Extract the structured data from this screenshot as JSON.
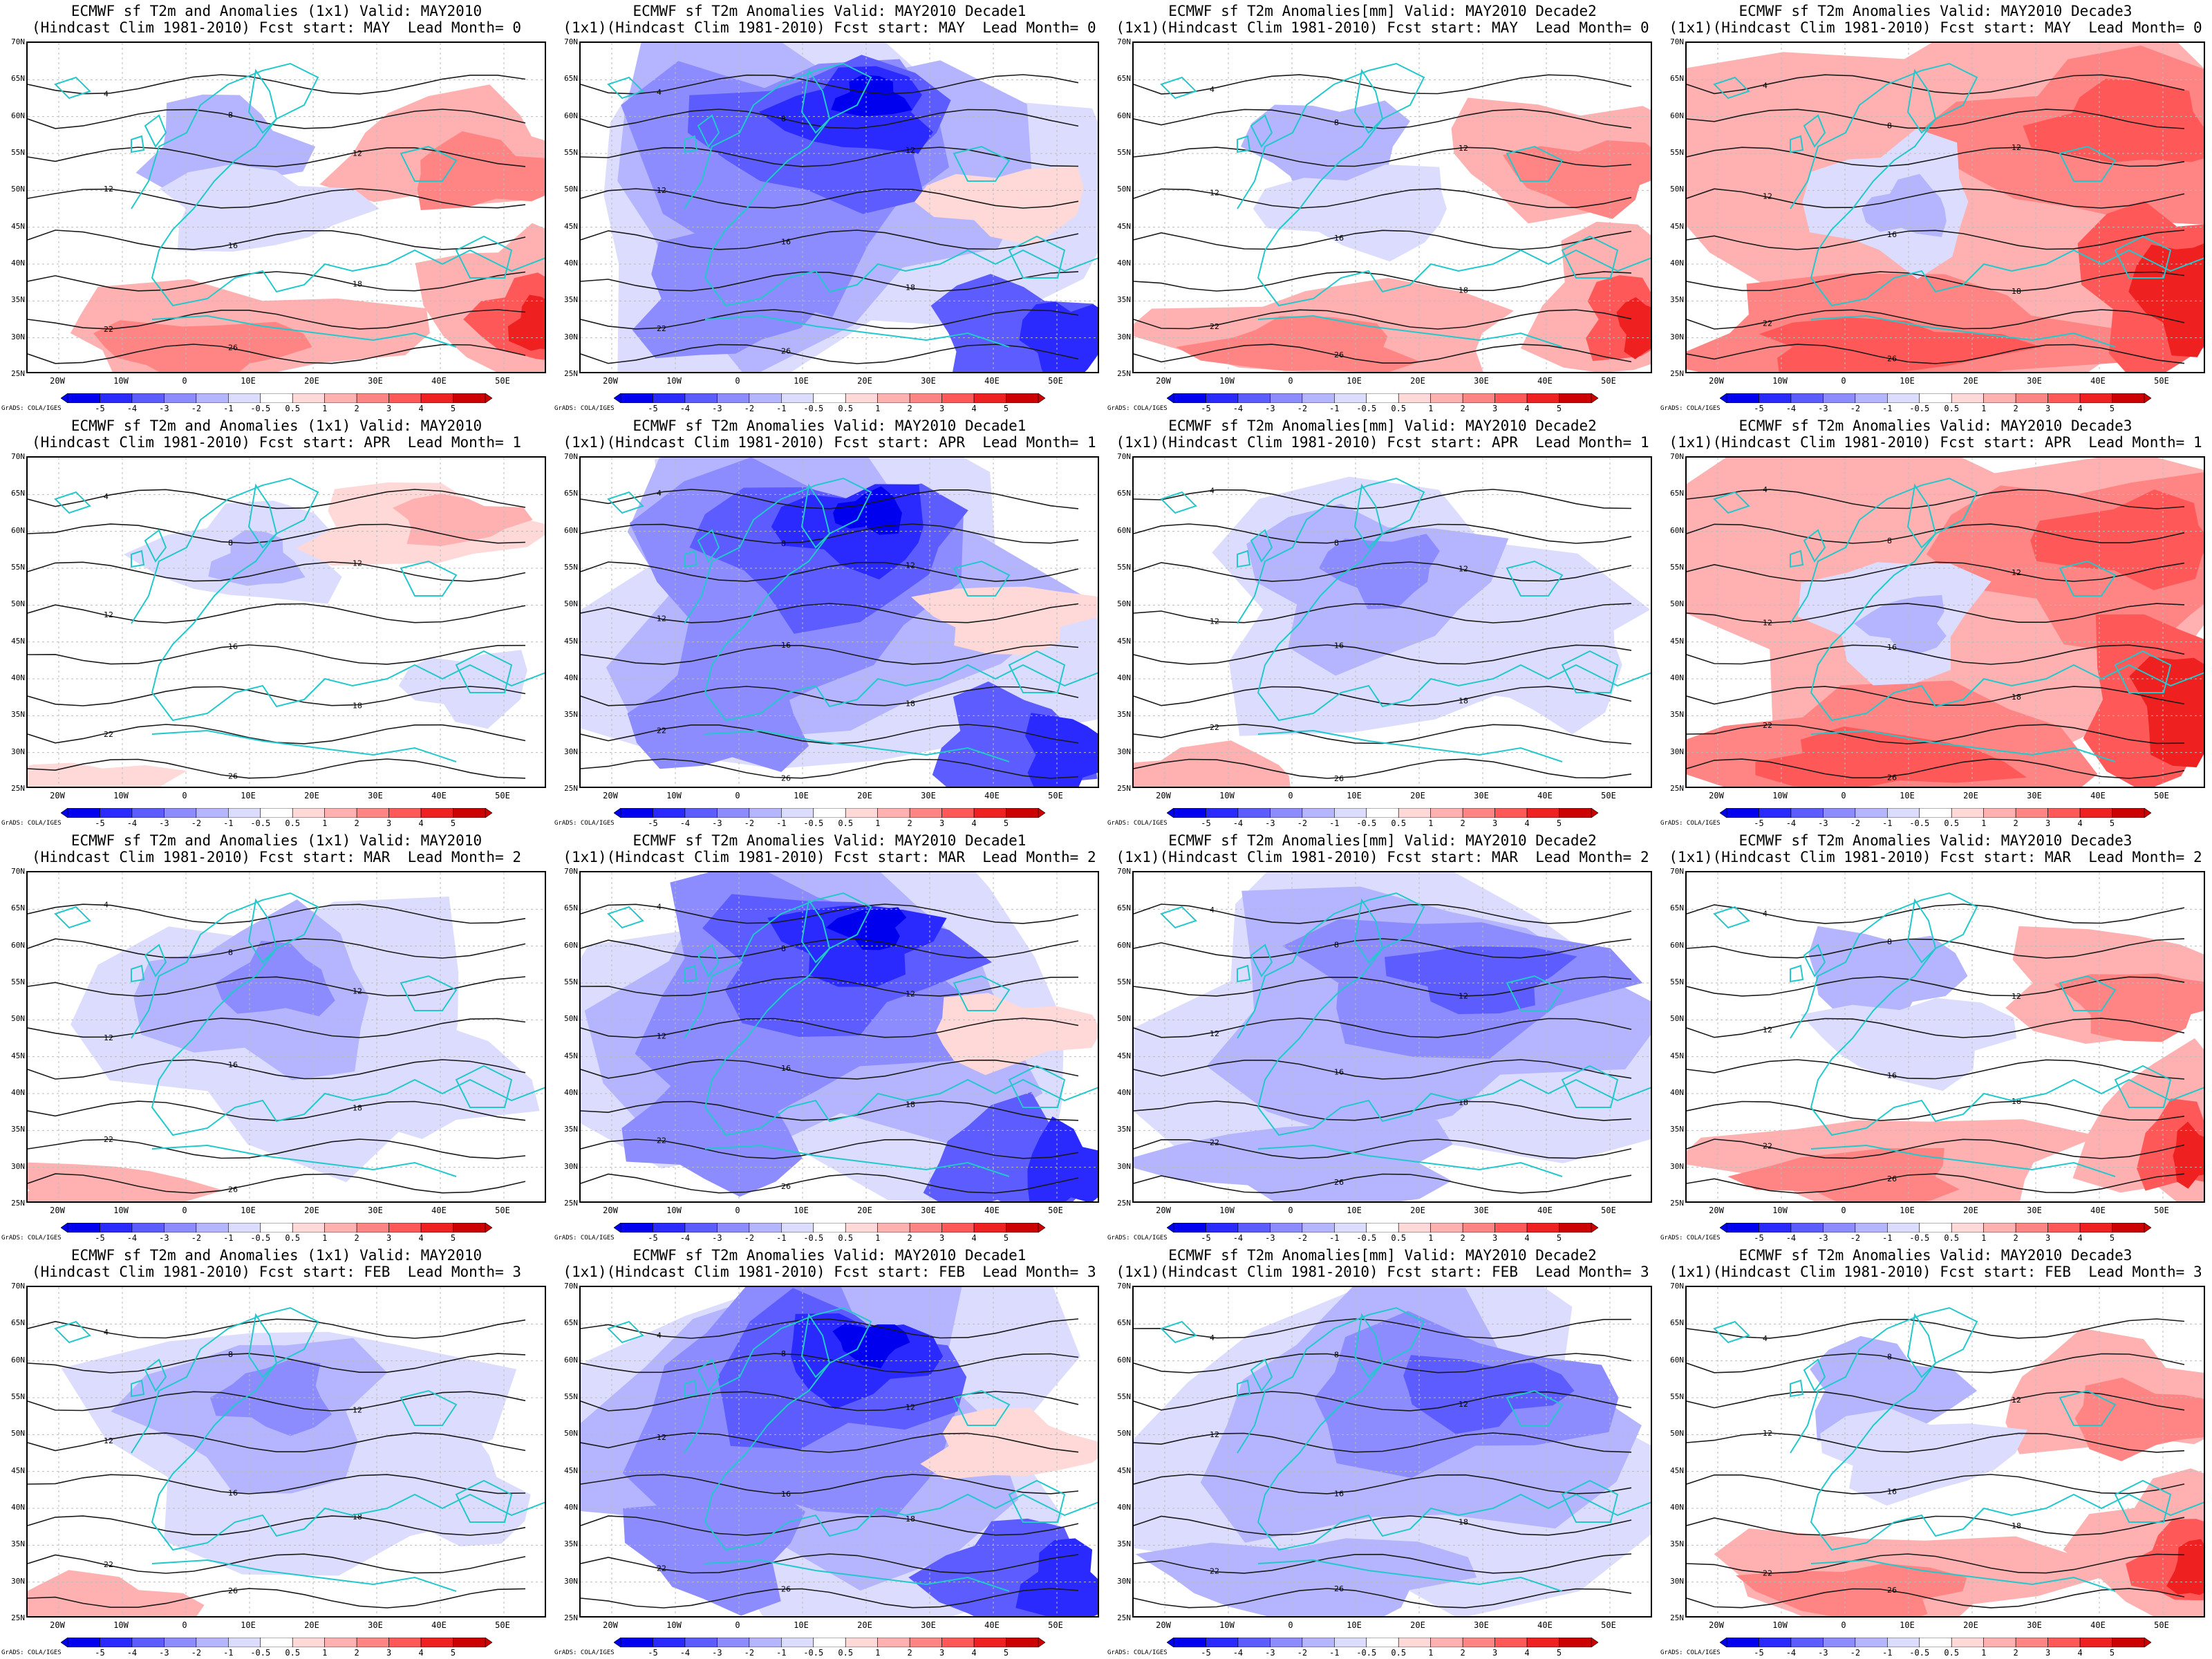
{
  "lat_labels": [
    "70N",
    "65N",
    "60N",
    "55N",
    "50N",
    "45N",
    "40N",
    "35N",
    "30N",
    "25N"
  ],
  "lon_labels": [
    "20W",
    "10W",
    "0",
    "10E",
    "20E",
    "30E",
    "40E",
    "50E"
  ],
  "colorbar": {
    "ticks": [
      "-5",
      "-4",
      "-3",
      "-2",
      "-1",
      "-0.5",
      "0.5",
      "1",
      "2",
      "3",
      "4",
      "5"
    ],
    "colors": [
      "#0000ee",
      "#2a2aff",
      "#5c5cff",
      "#8c8cff",
      "#b4b4ff",
      "#dcdcff",
      "#ffffff",
      "#ffd8d8",
      "#ffb0b0",
      "#ff8484",
      "#ff5858",
      "#ee2020",
      "#cc0000"
    ]
  },
  "credit": "GrADS: COLA/IGES",
  "contour_colors": {
    "coast": "#22c8cc",
    "isotherm": "#1a1a1a"
  },
  "panels": [
    {
      "line1": "ECMWF sf T2m and Anomalies (1x1) Valid: MAY2010",
      "line2": "(Hindcast Clim 1981-2010) Fcst start: MAY  Lead Month= 0",
      "anomaly": "warm-south"
    },
    {
      "line1": "ECMWF sf T2m Anomalies Valid: MAY2010 Decade1",
      "line2": "(1x1)(Hindcast Clim 1981-2010) Fcst start: MAY  Lead Month= 0",
      "anomaly": "cold-strong"
    },
    {
      "line1": "ECMWF sf T2m Anomalies[mm] Valid: MAY2010 Decade2",
      "line2": "(1x1)(Hindcast Clim 1981-2010) Fcst start: MAY  Lead Month= 0",
      "anomaly": "warm-south"
    },
    {
      "line1": "ECMWF sf T2m Anomalies Valid: MAY2010 Decade3",
      "line2": "(1x1)(Hindcast Clim 1981-2010) Fcst start: MAY  Lead Month= 0",
      "anomaly": "warm-strong"
    },
    {
      "line1": "ECMWF sf T2m and Anomalies (1x1) Valid: MAY2010",
      "line2": "(Hindcast Clim 1981-2010) Fcst start: APR  Lead Month= 1",
      "anomaly": "neutral"
    },
    {
      "line1": "ECMWF sf T2m Anomalies Valid: MAY2010 Decade1",
      "line2": "(1x1)(Hindcast Clim 1981-2010) Fcst start: APR  Lead Month= 1",
      "anomaly": "cold-strong"
    },
    {
      "line1": "ECMWF sf T2m Anomalies[mm] Valid: MAY2010 Decade2",
      "line2": "(1x1)(Hindcast Clim 1981-2010) Fcst start: APR  Lead Month= 1",
      "anomaly": "cold-mild"
    },
    {
      "line1": "ECMWF sf T2m Anomalies Valid: MAY2010 Decade3",
      "line2": "(1x1)(Hindcast Clim 1981-2010) Fcst start: APR  Lead Month= 1",
      "anomaly": "warm-strong"
    },
    {
      "line1": "ECMWF sf T2m and Anomalies (1x1) Valid: MAY2010",
      "line2": "(Hindcast Clim 1981-2010) Fcst start: MAR  Lead Month= 2",
      "anomaly": "cold-mild"
    },
    {
      "line1": "ECMWF sf T2m Anomalies Valid: MAY2010 Decade1",
      "line2": "(1x1)(Hindcast Clim 1981-2010) Fcst start: MAR  Lead Month= 2",
      "anomaly": "cold-strong"
    },
    {
      "line1": "ECMWF sf T2m Anomalies[mm] Valid: MAY2010 Decade2",
      "line2": "(1x1)(Hindcast Clim 1981-2010) Fcst start: MAR  Lead Month= 2",
      "anomaly": "cold-mid"
    },
    {
      "line1": "ECMWF sf T2m Anomalies Valid: MAY2010 Decade3",
      "line2": "(1x1)(Hindcast Clim 1981-2010) Fcst start: MAR  Lead Month= 2",
      "anomaly": "warm-south"
    },
    {
      "line1": "ECMWF sf T2m and Anomalies (1x1) Valid: MAY2010",
      "line2": "(Hindcast Clim 1981-2010) Fcst start: FEB  Lead Month= 3",
      "anomaly": "cold-mild"
    },
    {
      "line1": "ECMWF sf T2m Anomalies Valid: MAY2010 Decade1",
      "line2": "(1x1)(Hindcast Clim 1981-2010) Fcst start: FEB  Lead Month= 3",
      "anomaly": "cold-strong"
    },
    {
      "line1": "ECMWF sf T2m Anomalies[mm] Valid: MAY2010 Decade2",
      "line2": "(1x1)(Hindcast Clim 1981-2010) Fcst start: FEB  Lead Month= 3",
      "anomaly": "cold-mid"
    },
    {
      "line1": "ECMWF sf T2m Anomalies Valid: MAY2010 Decade3",
      "line2": "(1x1)(Hindcast Clim 1981-2010) Fcst start: FEB  Lead Month= 3",
      "anomaly": "warm-south"
    }
  ]
}
